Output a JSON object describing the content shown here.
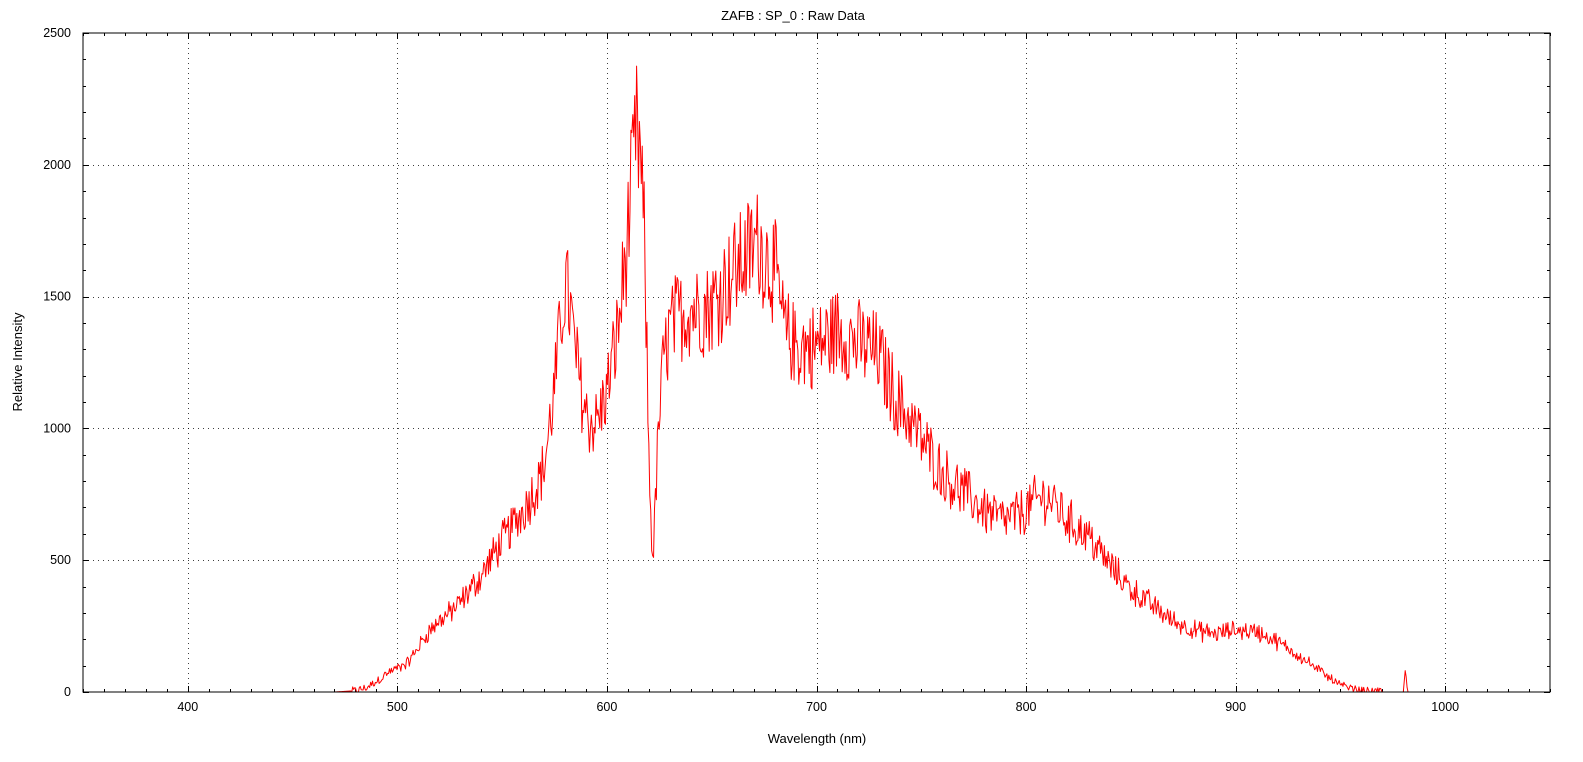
{
  "chart_data": {
    "type": "line",
    "title": "ZAFB : SP_0 : Raw Data",
    "xlabel": "Wavelength (nm)",
    "ylabel": "Relative Intensity",
    "xlim": [
      350,
      1050
    ],
    "ylim": [
      0,
      2500
    ],
    "x_ticks": [
      400,
      500,
      600,
      700,
      800,
      900,
      1000
    ],
    "y_ticks": [
      0,
      500,
      1000,
      1500,
      2000,
      2500
    ],
    "x_minor_step": 10,
    "y_minor_step": 100,
    "grid": true,
    "line_color": "#ff0000",
    "series": [
      {
        "noise_amplitude": 0.14,
        "x": [
          350,
          470,
          480,
          485,
          490,
          495,
          500,
          505,
          510,
          515,
          520,
          525,
          530,
          535,
          540,
          545,
          550,
          555,
          560,
          565,
          570,
          575,
          578,
          580,
          582,
          585,
          588,
          590,
          593,
          596,
          600,
          603,
          606,
          610,
          612,
          614,
          616,
          618,
          619,
          620,
          621,
          622,
          623,
          625,
          627,
          630,
          635,
          640,
          645,
          650,
          655,
          660,
          665,
          670,
          672,
          675,
          680,
          685,
          690,
          700,
          705,
          710,
          715,
          720,
          725,
          730,
          735,
          740,
          745,
          750,
          760,
          770,
          780,
          790,
          800,
          805,
          810,
          815,
          820,
          830,
          840,
          850,
          860,
          870,
          880,
          890,
          900,
          910,
          920,
          930,
          940,
          945,
          950,
          955,
          960,
          965,
          970,
          975,
          980,
          981,
          982,
          990,
          1000,
          1050
        ],
        "y": [
          0,
          0,
          5,
          15,
          40,
          70,
          90,
          110,
          170,
          230,
          270,
          300,
          340,
          390,
          440,
          510,
          570,
          630,
          690,
          760,
          850,
          1150,
          1400,
          1550,
          1480,
          1280,
          1130,
          1060,
          1010,
          1040,
          1140,
          1270,
          1420,
          1740,
          1940,
          2130,
          2020,
          1680,
          1300,
          900,
          650,
          500,
          700,
          1050,
          1250,
          1380,
          1430,
          1460,
          1450,
          1470,
          1530,
          1590,
          1640,
          1690,
          1710,
          1660,
          1600,
          1360,
          1310,
          1310,
          1340,
          1370,
          1350,
          1320,
          1310,
          1270,
          1170,
          1080,
          1030,
          960,
          830,
          760,
          690,
          650,
          690,
          730,
          740,
          700,
          650,
          590,
          480,
          390,
          330,
          270,
          235,
          220,
          235,
          230,
          190,
          140,
          80,
          55,
          25,
          12,
          5,
          2,
          0,
          0,
          0,
          90,
          0,
          0,
          0,
          0
        ]
      }
    ]
  }
}
